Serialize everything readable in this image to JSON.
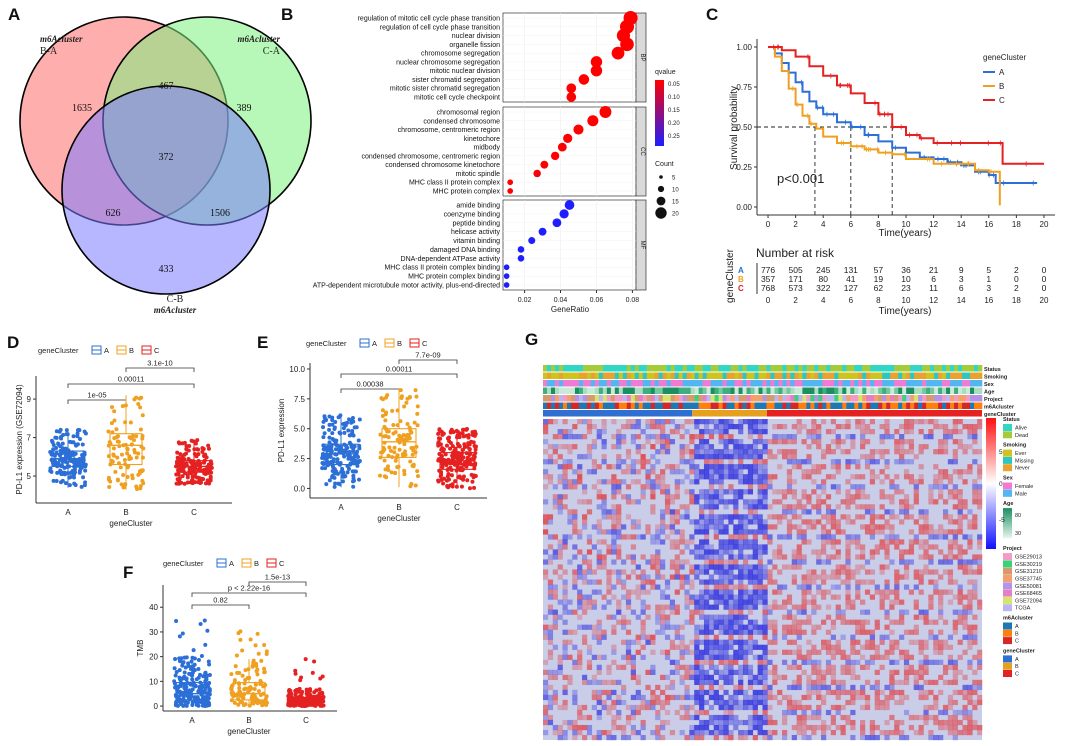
{
  "chart_data": [
    {
      "panel": "A",
      "type": "venn",
      "sets": [
        {
          "title": "m6Acluster",
          "name": "B-A",
          "color": "#ff6b6b"
        },
        {
          "title": "m6Acluster",
          "name": "C-A",
          "color": "#7cf07c"
        },
        {
          "title": "m6Acluster",
          "name": "C-B",
          "color": "#7b7bff"
        }
      ],
      "regions": [
        {
          "sets": "B-A only",
          "value": "1635"
        },
        {
          "sets": "C-A only",
          "value": "389"
        },
        {
          "sets": "C-B only",
          "value": "433"
        },
        {
          "sets": "B-A & C-A",
          "value": "467"
        },
        {
          "sets": "B-A & C-B",
          "value": "626"
        },
        {
          "sets": "C-A & C-B",
          "value": "1506"
        },
        {
          "sets": "all",
          "value": "372"
        }
      ]
    },
    {
      "panel": "B",
      "type": "scatter",
      "xlabel": "GeneRatio",
      "xticks": [
        "0.02",
        "0.04",
        "0.06",
        "0.08"
      ],
      "xlim": [
        0.008,
        0.082
      ],
      "facets": [
        {
          "name": "BP",
          "terms": [
            {
              "t": "regulation of mitotic cell cycle phase transition",
              "x": 0.079,
              "q": 0.05,
              "n": 22
            },
            {
              "t": "regulation of cell cycle phase transition",
              "x": 0.077,
              "q": 0.05,
              "n": 22
            },
            {
              "t": "nuclear division",
              "x": 0.075,
              "q": 0.05,
              "n": 20
            },
            {
              "t": "organelle fission",
              "x": 0.077,
              "q": 0.05,
              "n": 21
            },
            {
              "t": "chromosome segregation",
              "x": 0.072,
              "q": 0.05,
              "n": 19
            },
            {
              "t": "nuclear chromosome segregation",
              "x": 0.06,
              "q": 0.05,
              "n": 16
            },
            {
              "t": "mitotic nuclear division",
              "x": 0.06,
              "q": 0.05,
              "n": 16
            },
            {
              "t": "sister chromatid segregation",
              "x": 0.053,
              "q": 0.05,
              "n": 14
            },
            {
              "t": "mitotic sister chromatid segregation",
              "x": 0.046,
              "q": 0.05,
              "n": 12
            },
            {
              "t": "mitotic cell cycle checkpoint",
              "x": 0.046,
              "q": 0.05,
              "n": 12
            }
          ]
        },
        {
          "name": "CC",
          "terms": [
            {
              "t": "chromosomal region",
              "x": 0.065,
              "q": 0.05,
              "n": 17
            },
            {
              "t": "condensed chromosome",
              "x": 0.058,
              "q": 0.05,
              "n": 15
            },
            {
              "t": "chromosome, centromeric region",
              "x": 0.05,
              "q": 0.05,
              "n": 13
            },
            {
              "t": "kinetochore",
              "x": 0.044,
              "q": 0.05,
              "n": 11
            },
            {
              "t": "midbody",
              "x": 0.041,
              "q": 0.05,
              "n": 10
            },
            {
              "t": "condensed chromosome, centromeric region",
              "x": 0.037,
              "q": 0.05,
              "n": 9
            },
            {
              "t": "condensed chromosome kinetochore",
              "x": 0.031,
              "q": 0.05,
              "n": 8
            },
            {
              "t": "mitotic spindle",
              "x": 0.027,
              "q": 0.06,
              "n": 7
            },
            {
              "t": "MHC class II protein complex",
              "x": 0.012,
              "q": 0.05,
              "n": 3
            },
            {
              "t": "MHC protein complex",
              "x": 0.012,
              "q": 0.05,
              "n": 3
            }
          ]
        },
        {
          "name": "MF",
          "terms": [
            {
              "t": "amide binding",
              "x": 0.045,
              "q": 0.25,
              "n": 12
            },
            {
              "t": "coenzyme binding",
              "x": 0.042,
              "q": 0.25,
              "n": 11
            },
            {
              "t": "peptide binding",
              "x": 0.038,
              "q": 0.25,
              "n": 10
            },
            {
              "t": "helicase activity",
              "x": 0.03,
              "q": 0.25,
              "n": 8
            },
            {
              "t": "vitamin binding",
              "x": 0.024,
              "q": 0.25,
              "n": 6
            },
            {
              "t": "damaged DNA binding",
              "x": 0.018,
              "q": 0.25,
              "n": 5
            },
            {
              "t": "DNA-dependent ATPase activity",
              "x": 0.018,
              "q": 0.25,
              "n": 5
            },
            {
              "t": "MHC class II protein complex binding",
              "x": 0.01,
              "q": 0.25,
              "n": 3
            },
            {
              "t": "MHC protein complex binding",
              "x": 0.01,
              "q": 0.25,
              "n": 3
            },
            {
              "t": "ATP-dependent microtubule motor activity, plus-end-directed",
              "x": 0.01,
              "q": 0.25,
              "n": 3
            }
          ]
        }
      ],
      "legend": {
        "q_title": "qvalue",
        "q_ticks": [
          "0.05",
          "0.10",
          "0.15",
          "0.20",
          "0.25"
        ],
        "count_title": "Count",
        "count_ticks": [
          "5",
          "10",
          "15",
          "20"
        ]
      }
    },
    {
      "panel": "C",
      "type": "line",
      "ylabel": "Survival probability",
      "xlabel": "Time(years)",
      "yticks": [
        "0.00",
        "0.25",
        "0.50",
        "0.75",
        "1.00"
      ],
      "xticks": [
        "0",
        "2",
        "4",
        "6",
        "8",
        "10",
        "12",
        "14",
        "16",
        "18",
        "20"
      ],
      "xlim": [
        -0.8,
        20.8
      ],
      "ylim": [
        -0.05,
        1.05
      ],
      "legend_title": "geneCluster",
      "annotation": "p<0.001",
      "median_lines": [
        3.4,
        6.0,
        9.0
      ],
      "series": [
        {
          "name": "A",
          "color": "#2c6fd6",
          "points": [
            [
              0,
              1
            ],
            [
              0.5,
              0.96
            ],
            [
              1,
              0.9
            ],
            [
              1.5,
              0.84
            ],
            [
              2,
              0.78
            ],
            [
              2.5,
              0.72
            ],
            [
              3,
              0.66
            ],
            [
              3.5,
              0.62
            ],
            [
              4,
              0.58
            ],
            [
              5,
              0.53
            ],
            [
              6,
              0.5
            ],
            [
              7,
              0.45
            ],
            [
              8,
              0.41
            ],
            [
              9,
              0.37
            ],
            [
              10,
              0.34
            ],
            [
              11,
              0.31
            ],
            [
              12,
              0.3
            ],
            [
              13,
              0.28
            ],
            [
              14,
              0.26
            ],
            [
              15,
              0.22
            ],
            [
              16,
              0.2
            ],
            [
              16.5,
              0.15
            ],
            [
              19.5,
              0.15
            ]
          ]
        },
        {
          "name": "B",
          "color": "#f0a020",
          "points": [
            [
              0,
              1
            ],
            [
              0.5,
              0.94
            ],
            [
              1,
              0.85
            ],
            [
              1.5,
              0.74
            ],
            [
              2,
              0.64
            ],
            [
              2.5,
              0.57
            ],
            [
              3,
              0.52
            ],
            [
              3.5,
              0.49
            ],
            [
              4,
              0.44
            ],
            [
              5,
              0.4
            ],
            [
              6,
              0.38
            ],
            [
              7,
              0.36
            ],
            [
              8,
              0.34
            ],
            [
              9,
              0.33
            ],
            [
              10,
              0.3
            ],
            [
              12,
              0.27
            ],
            [
              14,
              0.27
            ],
            [
              15,
              0.23
            ],
            [
              16,
              0.22
            ],
            [
              16.5,
              0.22
            ],
            [
              16.8,
              0.01
            ]
          ]
        },
        {
          "name": "C",
          "color": "#e52121",
          "points": [
            [
              0,
              1
            ],
            [
              1,
              0.98
            ],
            [
              2,
              0.94
            ],
            [
              3,
              0.88
            ],
            [
              4,
              0.82
            ],
            [
              5,
              0.76
            ],
            [
              6,
              0.71
            ],
            [
              7,
              0.65
            ],
            [
              8,
              0.58
            ],
            [
              9,
              0.5
            ],
            [
              10,
              0.45
            ],
            [
              11,
              0.43
            ],
            [
              12,
              0.4
            ],
            [
              13,
              0.4
            ],
            [
              14,
              0.4
            ],
            [
              15,
              0.4
            ],
            [
              16,
              0.4
            ],
            [
              17,
              0.27
            ],
            [
              20,
              0.27
            ]
          ]
        }
      ],
      "risk_table": {
        "title": "Number at risk",
        "ylabel": "geneCluster",
        "xlabel": "Time(years)",
        "rows": [
          {
            "name": "A",
            "color": "#2c6fd6",
            "values": [
              "776",
              "505",
              "245",
              "131",
              "57",
              "36",
              "21",
              "9",
              "5",
              "2",
              "0"
            ]
          },
          {
            "name": "B",
            "color": "#f0a020",
            "values": [
              "357",
              "171",
              "80",
              "41",
              "19",
              "10",
              "6",
              "3",
              "1",
              "0",
              "0"
            ]
          },
          {
            "name": "C",
            "color": "#e52121",
            "values": [
              "768",
              "573",
              "322",
              "127",
              "62",
              "23",
              "11",
              "6",
              "3",
              "2",
              "0"
            ]
          }
        ]
      }
    },
    {
      "panel": "D",
      "type": "box",
      "legend_title": "geneCluster",
      "ylabel": "PD-L1 expression (GSE72094)",
      "xlabel": "geneCluster",
      "categories": [
        "A",
        "B",
        "C"
      ],
      "yticks": [
        "5",
        "7",
        "9"
      ],
      "ylim": [
        3.6,
        10.2
      ],
      "comparisons": [
        {
          "from": "A",
          "to": "B",
          "label": "1e-05"
        },
        {
          "from": "A",
          "to": "C",
          "label": "0.00011"
        },
        {
          "from": "B",
          "to": "C",
          "label": "3.1e-10"
        }
      ],
      "boxes": [
        {
          "name": "A",
          "min": 4.4,
          "q1": 5.5,
          "median": 5.9,
          "q3": 6.3,
          "max": 7.4
        },
        {
          "name": "B",
          "min": 4.3,
          "q1": 5.6,
          "median": 6.6,
          "q3": 7.2,
          "max": 9.2
        },
        {
          "name": "C",
          "min": 4.6,
          "q1": 5.2,
          "median": 5.5,
          "q3": 5.8,
          "max": 6.9
        }
      ]
    },
    {
      "panel": "E",
      "type": "box",
      "legend_title": "geneCluster",
      "ylabel": "PD-L1 expression",
      "xlabel": "geneCluster",
      "categories": [
        "A",
        "B",
        "C"
      ],
      "yticks": [
        "0.0",
        "2.5",
        "5.0",
        "7.5",
        "10.0"
      ],
      "ylim": [
        -0.8,
        10.5
      ],
      "comparisons": [
        {
          "from": "A",
          "to": "B",
          "label": "0.00038"
        },
        {
          "from": "A",
          "to": "C",
          "label": "0.00011"
        },
        {
          "from": "B",
          "to": "C",
          "label": "7.7e-09"
        }
      ],
      "boxes": [
        {
          "name": "A",
          "min": 0.1,
          "q1": 2.0,
          "median": 2.9,
          "q3": 3.7,
          "max": 6.2
        },
        {
          "name": "B",
          "min": 0.1,
          "q1": 2.6,
          "median": 3.9,
          "q3": 5.0,
          "max": 8.4
        },
        {
          "name": "C",
          "min": 0.0,
          "q1": 1.6,
          "median": 2.3,
          "q3": 3.0,
          "max": 5.0
        }
      ]
    },
    {
      "panel": "F",
      "type": "box",
      "legend_title": "geneCluster",
      "ylabel": "TMB",
      "xlabel": "geneCluster",
      "categories": [
        "A",
        "B",
        "C"
      ],
      "yticks": [
        "0",
        "10",
        "20",
        "30",
        "40"
      ],
      "ylim": [
        -2,
        49
      ],
      "comparisons": [
        {
          "from": "A",
          "to": "B",
          "label": "0.82"
        },
        {
          "from": "A",
          "to": "C",
          "label": "p < 2.22e-16"
        },
        {
          "from": "B",
          "to": "C",
          "label": "1.5e-13"
        }
      ],
      "boxes": [
        {
          "name": "A",
          "min": 0,
          "q1": 2.5,
          "median": 5,
          "q3": 9.5,
          "max": 20
        },
        {
          "name": "B",
          "min": 0,
          "q1": 2.5,
          "median": 5,
          "q3": 9.5,
          "max": 19
        },
        {
          "name": "C",
          "min": 0,
          "q1": 1,
          "median": 2,
          "q3": 3.5,
          "max": 7
        }
      ]
    },
    {
      "panel": "G",
      "type": "heatmap",
      "annotation_rows": [
        "Status",
        "Smoking",
        "Sex",
        "Age",
        "Project",
        "m6Acluster",
        "geneCluster"
      ],
      "column_split": [
        0.34,
        0.17,
        0.49
      ],
      "scale": {
        "max": "5",
        "mid": "0",
        "min": "-5"
      },
      "legends": [
        {
          "title": "Status",
          "items": [
            {
              "label": "Alive",
              "color": "#31d6c4"
            },
            {
              "label": "Dead",
              "color": "#a4cc3a"
            }
          ]
        },
        {
          "title": "Smoking",
          "items": [
            {
              "label": "Ever",
              "color": "#cfc41d"
            },
            {
              "label": "Missing",
              "color": "#2cc7c1"
            },
            {
              "label": "Never",
              "color": "#e9a22c"
            }
          ]
        },
        {
          "title": "Sex",
          "items": [
            {
              "label": "Female",
              "color": "#f07bd4"
            },
            {
              "label": "Male",
              "color": "#52b6f0"
            }
          ]
        },
        {
          "title": "Age",
          "items": [
            {
              "label": "80",
              "color": "#1a8f5f"
            },
            {
              "label": "30",
              "color": "#c9e9d9"
            }
          ]
        },
        {
          "title": "Project",
          "items": [
            {
              "label": "GSE29013",
              "color": "#f49ac8"
            },
            {
              "label": "GSE30219",
              "color": "#3bd17a"
            },
            {
              "label": "GSE31210",
              "color": "#d69b6a"
            },
            {
              "label": "GSE37745",
              "color": "#f5a06a"
            },
            {
              "label": "GSE50081",
              "color": "#b392e8"
            },
            {
              "label": "GSE68465",
              "color": "#e47ec5"
            },
            {
              "label": "GSE72094",
              "color": "#d7e36a"
            },
            {
              "label": "TCGA",
              "color": "#b9b6f2"
            }
          ]
        },
        {
          "title": "m6Acluster",
          "items": [
            {
              "label": "A",
              "color": "#1f77b4"
            },
            {
              "label": "B",
              "color": "#ff7f0e"
            },
            {
              "label": "C",
              "color": "#d62728"
            }
          ]
        },
        {
          "title": "geneCluster",
          "items": [
            {
              "label": "A",
              "color": "#2f6fd1"
            },
            {
              "label": "B",
              "color": "#e6a020"
            },
            {
              "label": "C",
              "color": "#e52121"
            }
          ]
        }
      ]
    }
  ],
  "panel_labels": [
    "A",
    "B",
    "C",
    "D",
    "E",
    "F",
    "G"
  ]
}
